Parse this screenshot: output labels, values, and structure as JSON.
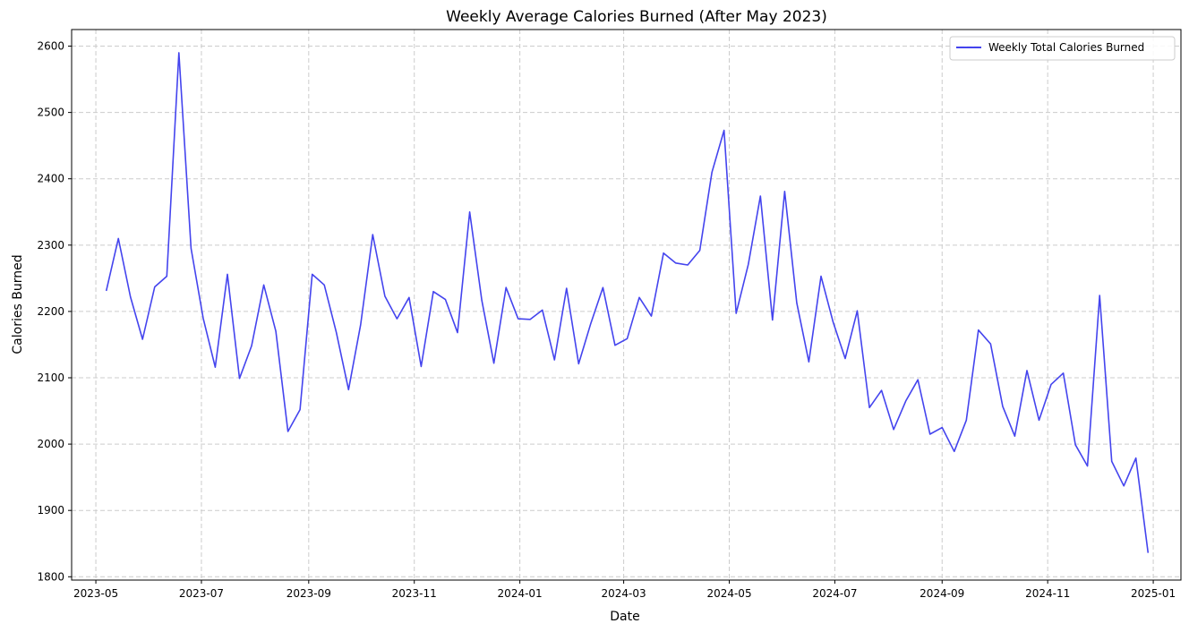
{
  "chart_data": {
    "type": "line",
    "title": "Weekly Average Calories Burned (After May 2023)",
    "xlabel": "Date",
    "ylabel": "Calories Burned",
    "x_ticks": [
      "2023-05",
      "2023-07",
      "2023-09",
      "2023-11",
      "2024-01",
      "2024-03",
      "2024-05",
      "2024-07",
      "2024-09",
      "2024-11",
      "2025-01"
    ],
    "y_ticks": [
      1800,
      1900,
      2000,
      2100,
      2200,
      2300,
      2400,
      2500,
      2600
    ],
    "xlim": [
      "2023-04-17",
      "2025-01-17"
    ],
    "ylim": [
      1795,
      2625
    ],
    "grid": true,
    "legend_position": "top-right",
    "colors": {
      "line": "#4444ee",
      "grid": "#cccccc",
      "axis": "#000000"
    },
    "series": [
      {
        "name": "Weekly Total Calories Burned",
        "x": [
          "2023-05-07",
          "2023-05-14",
          "2023-05-21",
          "2023-05-28",
          "2023-06-04",
          "2023-06-11",
          "2023-06-18",
          "2023-06-25",
          "2023-07-02",
          "2023-07-09",
          "2023-07-16",
          "2023-07-23",
          "2023-07-30",
          "2023-08-06",
          "2023-08-13",
          "2023-08-20",
          "2023-08-27",
          "2023-09-03",
          "2023-09-10",
          "2023-09-17",
          "2023-09-24",
          "2023-10-01",
          "2023-10-08",
          "2023-10-15",
          "2023-10-22",
          "2023-10-29",
          "2023-11-05",
          "2023-11-12",
          "2023-11-19",
          "2023-11-26",
          "2023-12-03",
          "2023-12-10",
          "2023-12-17",
          "2023-12-24",
          "2023-12-31",
          "2024-01-07",
          "2024-01-14",
          "2024-01-21",
          "2024-01-28",
          "2024-02-04",
          "2024-02-11",
          "2024-02-18",
          "2024-02-25",
          "2024-03-03",
          "2024-03-10",
          "2024-03-17",
          "2024-03-24",
          "2024-03-31",
          "2024-04-07",
          "2024-04-14",
          "2024-04-21",
          "2024-04-28",
          "2024-05-05",
          "2024-05-12",
          "2024-05-19",
          "2024-05-26",
          "2024-06-02",
          "2024-06-09",
          "2024-06-16",
          "2024-06-23",
          "2024-06-30",
          "2024-07-07",
          "2024-07-14",
          "2024-07-21",
          "2024-07-28",
          "2024-08-04",
          "2024-08-11",
          "2024-08-18",
          "2024-08-25",
          "2024-09-01",
          "2024-09-08",
          "2024-09-15",
          "2024-09-22",
          "2024-09-29",
          "2024-10-06",
          "2024-10-13",
          "2024-10-20",
          "2024-10-27",
          "2024-11-03",
          "2024-11-10",
          "2024-11-17",
          "2024-11-24",
          "2024-12-01",
          "2024-12-08",
          "2024-12-15",
          "2024-12-22",
          "2024-12-29"
        ],
        "values": [
          2231,
          2310,
          2222,
          2158,
          2237,
          2253,
          2590,
          2295,
          2190,
          2116,
          2256,
          2099,
          2148,
          2240,
          2170,
          2019,
          2052,
          2256,
          2240,
          2168,
          2082,
          2180,
          2316,
          2223,
          2189,
          2221,
          2117,
          2230,
          2218,
          2168,
          2350,
          2217,
          2122,
          2236,
          2189,
          2188,
          2202,
          2127,
          2235,
          2121,
          2182,
          2236,
          2149,
          2159,
          2221,
          2193,
          2288,
          2273,
          2270,
          2292,
          2410,
          2473,
          2197,
          2271,
          2374,
          2187,
          2381,
          2213,
          2124,
          2253,
          2184,
          2129,
          2201,
          2055,
          2081,
          2022,
          2065,
          2097,
          2015,
          2025,
          1989,
          2036,
          2172,
          2151,
          2057,
          2012,
          2111,
          2036,
          2090,
          2107,
          1999,
          1967,
          2224,
          1974,
          1937,
          1979,
          1836
        ]
      }
    ]
  }
}
